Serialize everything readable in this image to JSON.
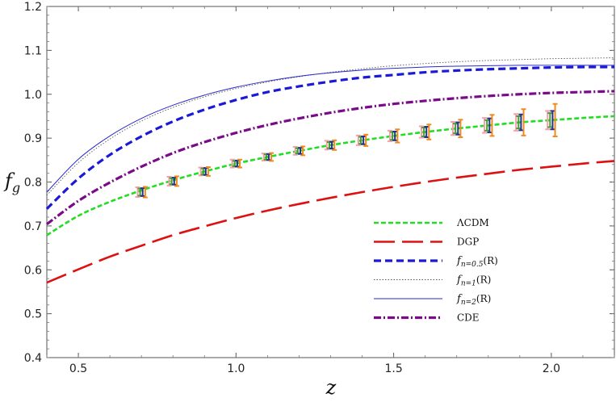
{
  "chart_data": {
    "type": "line",
    "xlabel": "z",
    "ylabel": "f_g",
    "xlim": [
      0.4,
      2.2
    ],
    "ylim": [
      0.4,
      1.2
    ],
    "xticks": [
      "0.5",
      "1.0",
      "1.5",
      "2.0"
    ],
    "xtick_values": [
      0.5,
      1.0,
      1.5,
      2.0
    ],
    "yticks": [
      "0.4",
      "0.5",
      "0.6",
      "0.7",
      "0.8",
      "0.9",
      "1.0",
      "1.1",
      "1.2"
    ],
    "ytick_values": [
      0.4,
      0.5,
      0.6,
      0.7,
      0.8,
      0.9,
      1.0,
      1.1,
      1.2
    ],
    "grid": false,
    "legend_position": "bottom-right",
    "x": [
      0.4,
      0.5,
      0.6,
      0.7,
      0.8,
      0.9,
      1.0,
      1.1,
      1.2,
      1.3,
      1.4,
      1.5,
      1.6,
      1.7,
      1.8,
      1.9,
      2.0,
      2.1,
      2.2
    ],
    "series": [
      {
        "name": "ΛCDM",
        "name_main": "ΛCDM",
        "name_sub": "",
        "name_suffix": "",
        "color": "#22dd22",
        "style": "short-dash",
        "values": [
          0.679,
          0.723,
          0.755,
          0.781,
          0.804,
          0.824,
          0.842,
          0.857,
          0.871,
          0.884,
          0.895,
          0.905,
          0.914,
          0.922,
          0.929,
          0.936,
          0.941,
          0.946,
          0.95
        ]
      },
      {
        "name": "DGP",
        "name_main": "DGP",
        "name_sub": "",
        "name_suffix": "",
        "color": "#dd1111",
        "style": "long-dash",
        "values": [
          0.571,
          0.601,
          0.63,
          0.655,
          0.679,
          0.699,
          0.718,
          0.735,
          0.75,
          0.764,
          0.777,
          0.789,
          0.8,
          0.81,
          0.819,
          0.828,
          0.835,
          0.842,
          0.848
        ]
      },
      {
        "name": "fn=0.5(R)",
        "name_main": "f",
        "name_sub": "n=0.5",
        "name_suffix": "(R)",
        "color": "#1a1ad6",
        "style": "dash",
        "values": [
          0.739,
          0.808,
          0.862,
          0.904,
          0.938,
          0.965,
          0.987,
          1.005,
          1.018,
          1.029,
          1.038,
          1.044,
          1.05,
          1.054,
          1.057,
          1.059,
          1.061,
          1.062,
          1.062
        ]
      },
      {
        "name": "fn=1(R)",
        "name_main": "f",
        "name_sub": "n=1",
        "name_suffix": "(R)",
        "color": "#555555",
        "style": "dotted",
        "values": [
          0.77,
          0.844,
          0.898,
          0.939,
          0.97,
          0.994,
          1.013,
          1.028,
          1.04,
          1.05,
          1.058,
          1.065,
          1.07,
          1.074,
          1.077,
          1.079,
          1.081,
          1.082,
          1.083
        ]
      },
      {
        "name": "fn=2(R)",
        "name_main": "f",
        "name_sub": "n=2",
        "name_suffix": "(R)",
        "color": "#2a2acc",
        "style": "solid",
        "values": [
          0.777,
          0.852,
          0.905,
          0.945,
          0.975,
          0.998,
          1.016,
          1.03,
          1.041,
          1.049,
          1.055,
          1.059,
          1.062,
          1.064,
          1.065,
          1.066,
          1.066,
          1.066,
          1.066
        ]
      },
      {
        "name": "CDE",
        "name_main": "CDE",
        "name_sub": "",
        "name_suffix": "",
        "color": "#7a0a8a",
        "style": "dash-dot",
        "values": [
          0.704,
          0.757,
          0.799,
          0.835,
          0.866,
          0.891,
          0.912,
          0.93,
          0.945,
          0.958,
          0.969,
          0.978,
          0.985,
          0.991,
          0.996,
          1.0,
          1.003,
          1.005,
          1.007
        ]
      }
    ],
    "error_bars": {
      "x": [
        0.7,
        0.8,
        0.9,
        1.0,
        1.1,
        1.2,
        1.3,
        1.4,
        1.5,
        1.6,
        1.7,
        1.8,
        1.9,
        2.0
      ],
      "y": [
        0.777,
        0.802,
        0.824,
        0.842,
        0.857,
        0.871,
        0.884,
        0.895,
        0.905,
        0.914,
        0.922,
        0.929,
        0.936,
        0.941
      ],
      "errors": [
        {
          "color": "#f5a0aa",
          "offset": -0.012,
          "half_width": [
            0.011,
            0.01,
            0.009,
            0.009,
            0.008,
            0.009,
            0.01,
            0.011,
            0.012,
            0.013,
            0.015,
            0.017,
            0.019,
            0.021
          ]
        },
        {
          "color": "#4a9a3a",
          "offset": -0.004,
          "half_width": [
            0.008,
            0.007,
            0.007,
            0.006,
            0.006,
            0.006,
            0.007,
            0.008,
            0.009,
            0.01,
            0.011,
            0.012,
            0.014,
            0.016
          ]
        },
        {
          "color": "#223388",
          "offset": 0.004,
          "half_width": [
            0.009,
            0.008,
            0.008,
            0.007,
            0.007,
            0.007,
            0.008,
            0.009,
            0.01,
            0.012,
            0.014,
            0.016,
            0.018,
            0.021
          ]
        },
        {
          "color": "#f08a20",
          "offset": 0.012,
          "half_width": [
            0.012,
            0.011,
            0.01,
            0.009,
            0.009,
            0.01,
            0.011,
            0.013,
            0.015,
            0.017,
            0.02,
            0.024,
            0.03,
            0.037
          ]
        }
      ]
    }
  }
}
